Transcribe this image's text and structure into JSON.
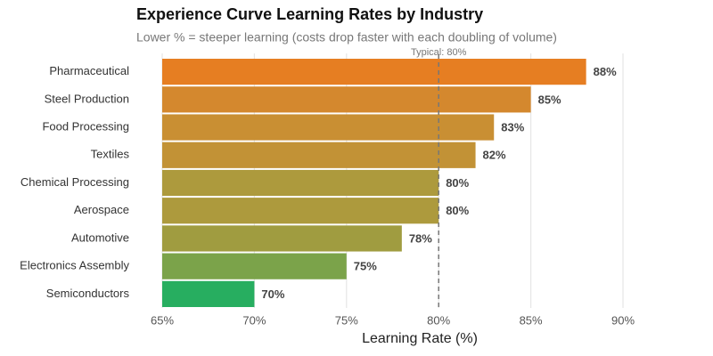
{
  "chart_data": {
    "type": "barh",
    "title": "Experience Curve Learning Rates by Industry",
    "subtitle": "Lower % = steeper learning (costs drop faster with each doubling of volume)",
    "x_label": "Learning Rate (%)",
    "categories": [
      "Pharmaceutical",
      "Steel Production",
      "Food Processing",
      "Textiles",
      "Chemical Processing",
      "Aerospace",
      "Automotive",
      "Electronics Assembly",
      "Semiconductors"
    ],
    "values": [
      88,
      85,
      83,
      82,
      80,
      80,
      78,
      75,
      70
    ],
    "value_labels": [
      "88%",
      "85%",
      "83%",
      "82%",
      "80%",
      "80%",
      "78%",
      "75%",
      "70%"
    ],
    "colors": [
      "#e67e22",
      "#d4882e",
      "#c98f33",
      "#c29236",
      "#ad9a3d",
      "#ad9a3d",
      "#a09c40",
      "#7ba34a",
      "#27ae60"
    ],
    "xlim": [
      65,
      90
    ],
    "xticks": [
      {
        "value": 65,
        "label": "65%"
      },
      {
        "value": 70,
        "label": "70%"
      },
      {
        "value": 75,
        "label": "75%"
      },
      {
        "value": 80,
        "label": "80%"
      },
      {
        "value": 85,
        "label": "85%"
      },
      {
        "value": 90,
        "label": "90%"
      }
    ],
    "grid": true,
    "reference_line": {
      "value": 80,
      "label": "Typical: 80%"
    }
  }
}
